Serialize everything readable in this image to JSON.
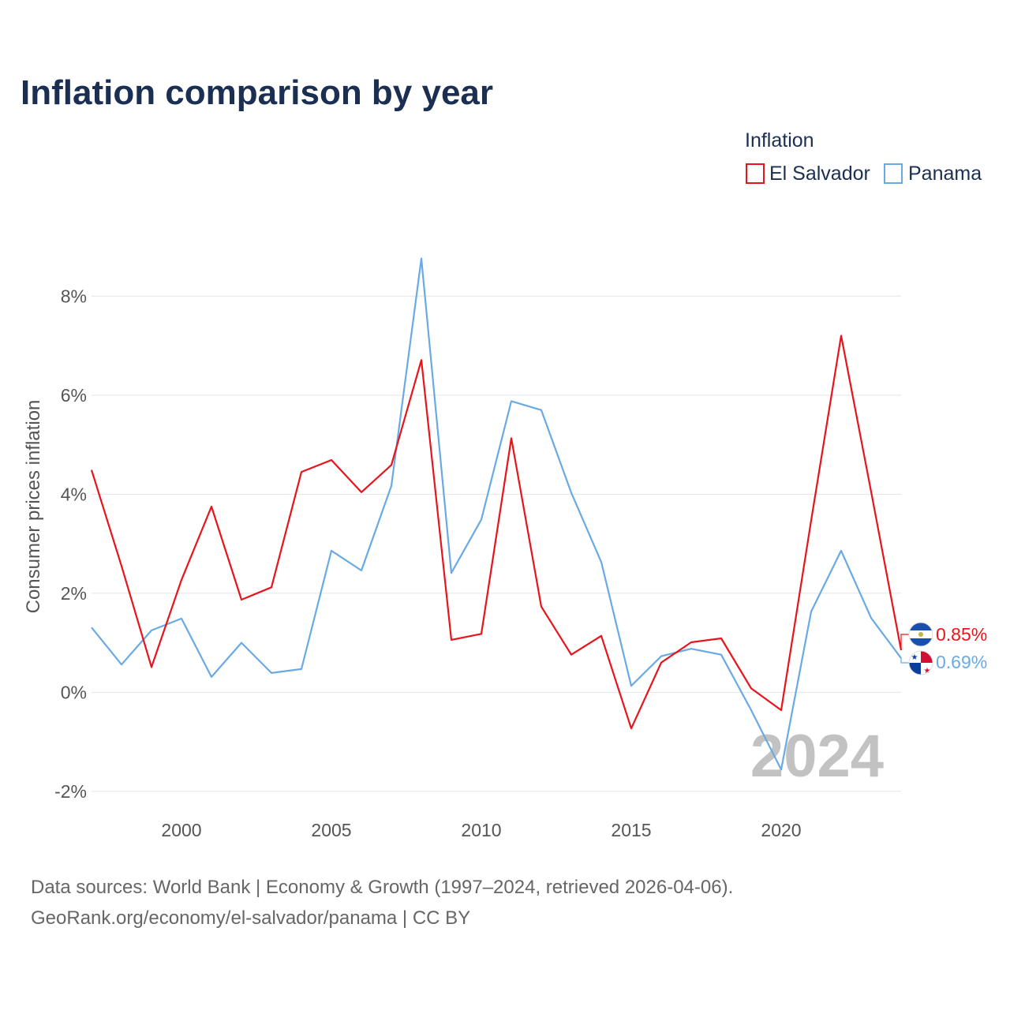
{
  "title": "Inflation comparison by year",
  "legend": {
    "title": "Inflation",
    "items": [
      {
        "name": "El Salvador",
        "color": "#e8141c"
      },
      {
        "name": "Panama",
        "color": "#6aaae4"
      }
    ]
  },
  "watermark_year": "2024",
  "footer": {
    "line1": "Data sources: World Bank | Economy & Growth (1997–2024, retrieved 2026-04-06).",
    "line2": "GeoRank.org/economy/el-salvador/panama | CC BY"
  },
  "chart_data": {
    "type": "line",
    "title": "Inflation comparison by year",
    "xlabel": "",
    "ylabel": "Consumer prices inflation",
    "x": [
      1997,
      1998,
      1999,
      2000,
      2001,
      2002,
      2003,
      2004,
      2005,
      2006,
      2007,
      2008,
      2009,
      2010,
      2011,
      2012,
      2013,
      2014,
      2015,
      2016,
      2017,
      2018,
      2019,
      2020,
      2021,
      2022,
      2023,
      2024
    ],
    "xlim": [
      1997,
      2024
    ],
    "ylim": [
      -2.4,
      9.2
    ],
    "x_ticks": [
      2000,
      2005,
      2010,
      2015,
      2020
    ],
    "y_ticks": [
      -2,
      0,
      2,
      4,
      6,
      8
    ],
    "y_tick_labels": [
      "-2%",
      "0%",
      "2%",
      "4%",
      "6%",
      "8%"
    ],
    "series": [
      {
        "name": "El Salvador",
        "color": "#e8141c",
        "values": [
          4.49,
          2.55,
          0.51,
          2.27,
          3.75,
          1.87,
          2.12,
          4.45,
          4.69,
          4.04,
          4.59,
          6.71,
          1.06,
          1.18,
          5.13,
          1.73,
          0.76,
          1.14,
          -0.73,
          0.6,
          1.01,
          1.09,
          0.08,
          -0.36,
          3.47,
          7.2,
          4.05,
          0.85
        ],
        "end_label": "0.85%"
      },
      {
        "name": "Panama",
        "color": "#6aaae4",
        "values": [
          1.31,
          0.56,
          1.25,
          1.49,
          0.31,
          1.0,
          0.39,
          0.47,
          2.86,
          2.46,
          4.17,
          8.76,
          2.41,
          3.49,
          5.88,
          5.7,
          4.03,
          2.63,
          0.13,
          0.73,
          0.88,
          0.76,
          -0.36,
          -1.56,
          1.63,
          2.86,
          1.5,
          0.69
        ],
        "end_label": "0.69%"
      }
    ],
    "grid": true,
    "legend_position": "top-right"
  }
}
